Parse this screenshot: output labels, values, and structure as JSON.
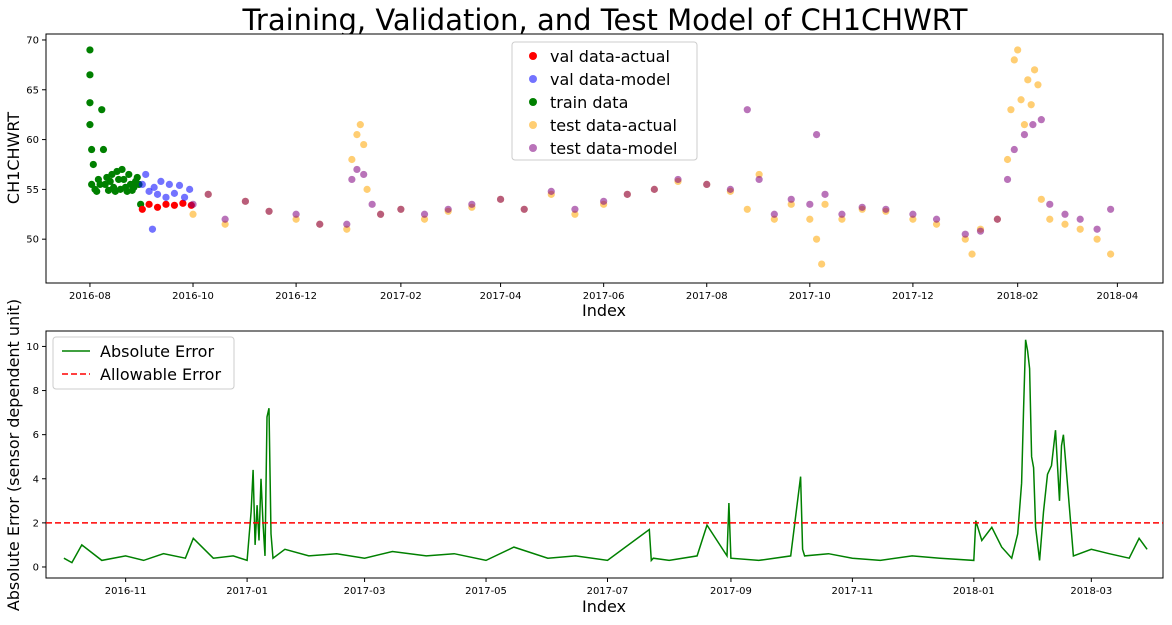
{
  "chart_data": [
    {
      "type": "scatter",
      "title": "Training, Validation, and Test Model of CH1CHWRT",
      "xlabel": "Index",
      "ylabel": "CH1CHWRT",
      "xlim": [
        "2016-07-06",
        "2018-04-28"
      ],
      "ylim": [
        45.6,
        70.6
      ],
      "x_ticks": [
        "2016-08",
        "2016-10",
        "2016-12",
        "2017-02",
        "2017-04",
        "2017-06",
        "2017-08",
        "2017-10",
        "2017-12",
        "2018-02",
        "2018-04"
      ],
      "y_ticks": [
        "50",
        "55",
        "60",
        "65",
        "70"
      ],
      "legend_position": "top-center",
      "grid": false,
      "series": [
        {
          "name": "train data",
          "color": "#008000",
          "x": [
            "2016-08-01",
            "2016-08-01",
            "2016-08-01",
            "2016-08-01",
            "2016-08-02",
            "2016-08-02",
            "2016-08-03",
            "2016-08-04",
            "2016-08-05",
            "2016-08-06",
            "2016-08-07",
            "2016-08-08",
            "2016-08-09",
            "2016-08-10",
            "2016-08-11",
            "2016-08-12",
            "2016-08-13",
            "2016-08-14",
            "2016-08-15",
            "2016-08-16",
            "2016-08-17",
            "2016-08-18",
            "2016-08-19",
            "2016-08-20",
            "2016-08-21",
            "2016-08-22",
            "2016-08-23",
            "2016-08-24",
            "2016-08-25",
            "2016-08-26",
            "2016-08-27",
            "2016-08-28",
            "2016-08-29",
            "2016-08-30",
            "2016-08-31"
          ],
          "y": [
            69.0,
            66.5,
            63.7,
            61.5,
            59.0,
            55.5,
            57.5,
            55.0,
            54.8,
            56.0,
            55.5,
            63.0,
            59.0,
            55.5,
            56.2,
            54.9,
            55.8,
            56.5,
            55.2,
            54.8,
            56.8,
            56.0,
            55.0,
            57.0,
            56.0,
            55.2,
            54.8,
            56.5,
            55.5,
            54.9,
            55.2,
            55.8,
            56.2,
            55.5,
            53.5
          ]
        },
        {
          "name": "val data-actual",
          "color": "#ff0000",
          "x": [
            "2016-09-01",
            "2016-09-05",
            "2016-09-10",
            "2016-09-15",
            "2016-09-20",
            "2016-09-25",
            "2016-09-30"
          ],
          "y": [
            53.0,
            53.5,
            53.2,
            53.5,
            53.4,
            53.6,
            53.4
          ]
        },
        {
          "name": "val data-model",
          "color": "#0000ff",
          "x": [
            "2016-09-01",
            "2016-09-03",
            "2016-09-05",
            "2016-09-07",
            "2016-09-08",
            "2016-09-10",
            "2016-09-12",
            "2016-09-15",
            "2016-09-17",
            "2016-09-20",
            "2016-09-23",
            "2016-09-26",
            "2016-09-29"
          ],
          "y": [
            55.5,
            56.5,
            54.8,
            51.0,
            55.2,
            54.5,
            55.8,
            54.2,
            55.5,
            54.6,
            55.4,
            54.2,
            55.0
          ]
        },
        {
          "name": "test data-actual",
          "color": "#ffa500",
          "x": [
            "2016-10-01",
            "2016-10-10",
            "2016-10-20",
            "2016-11-01",
            "2016-11-15",
            "2016-12-01",
            "2016-12-15",
            "2016-12-31",
            "2017-01-03",
            "2017-01-06",
            "2017-01-08",
            "2017-01-10",
            "2017-01-12",
            "2017-01-20",
            "2017-02-01",
            "2017-02-15",
            "2017-03-01",
            "2017-03-15",
            "2017-04-01",
            "2017-04-15",
            "2017-05-01",
            "2017-05-15",
            "2017-06-01",
            "2017-06-15",
            "2017-07-01",
            "2017-07-15",
            "2017-08-01",
            "2017-08-15",
            "2017-08-25",
            "2017-09-01",
            "2017-09-10",
            "2017-09-20",
            "2017-10-01",
            "2017-10-05",
            "2017-10-08",
            "2017-10-10",
            "2017-10-20",
            "2017-11-01",
            "2017-11-15",
            "2017-12-01",
            "2017-12-15",
            "2018-01-01",
            "2018-01-05",
            "2018-01-10",
            "2018-01-20",
            "2018-01-26",
            "2018-01-28",
            "2018-01-30",
            "2018-02-01",
            "2018-02-03",
            "2018-02-05",
            "2018-02-07",
            "2018-02-09",
            "2018-02-11",
            "2018-02-13",
            "2018-02-15",
            "2018-02-20",
            "2018-03-01",
            "2018-03-10",
            "2018-03-20",
            "2018-03-28"
          ],
          "y": [
            52.5,
            54.5,
            51.5,
            53.8,
            52.8,
            52.0,
            51.5,
            51.0,
            58.0,
            60.5,
            61.5,
            59.5,
            55.0,
            52.5,
            53.0,
            52.0,
            52.8,
            53.2,
            54.0,
            53.0,
            54.5,
            52.5,
            53.5,
            54.5,
            55.0,
            55.8,
            55.5,
            54.8,
            53.0,
            56.5,
            52.0,
            53.5,
            52.0,
            50.0,
            47.5,
            53.5,
            52.0,
            53.0,
            52.8,
            52.0,
            51.5,
            50.0,
            48.5,
            51.0,
            52.0,
            58.0,
            63.0,
            68.0,
            69.0,
            64.0,
            61.5,
            66.0,
            63.5,
            67.0,
            65.5,
            54.0,
            52.0,
            51.5,
            51.0,
            50.0,
            48.5
          ]
        },
        {
          "name": "test data-model",
          "color": "#800080",
          "x": [
            "2016-10-01",
            "2016-10-10",
            "2016-10-20",
            "2016-11-01",
            "2016-11-15",
            "2016-12-01",
            "2016-12-15",
            "2016-12-31",
            "2017-01-03",
            "2017-01-06",
            "2017-01-10",
            "2017-01-15",
            "2017-01-20",
            "2017-02-01",
            "2017-02-15",
            "2017-03-01",
            "2017-03-15",
            "2017-04-01",
            "2017-04-15",
            "2017-05-01",
            "2017-05-15",
            "2017-06-01",
            "2017-06-15",
            "2017-07-01",
            "2017-07-15",
            "2017-08-01",
            "2017-08-15",
            "2017-08-25",
            "2017-09-01",
            "2017-09-10",
            "2017-09-20",
            "2017-10-01",
            "2017-10-05",
            "2017-10-10",
            "2017-10-20",
            "2017-11-01",
            "2017-11-15",
            "2017-12-01",
            "2017-12-15",
            "2018-01-01",
            "2018-01-10",
            "2018-01-20",
            "2018-01-26",
            "2018-01-30",
            "2018-02-05",
            "2018-02-10",
            "2018-02-15",
            "2018-02-20",
            "2018-03-01",
            "2018-03-10",
            "2018-03-20",
            "2018-03-28"
          ],
          "y": [
            53.5,
            54.5,
            52.0,
            53.8,
            52.8,
            52.5,
            51.5,
            51.5,
            56.0,
            57.0,
            56.5,
            53.5,
            52.5,
            53.0,
            52.5,
            53.0,
            53.5,
            54.0,
            53.0,
            54.8,
            53.0,
            53.8,
            54.5,
            55.0,
            56.0,
            55.5,
            55.0,
            63.0,
            56.0,
            52.5,
            54.0,
            53.5,
            60.5,
            54.5,
            52.5,
            53.2,
            53.0,
            52.5,
            52.0,
            50.5,
            50.8,
            52.0,
            56.0,
            59.0,
            60.5,
            61.5,
            62.0,
            53.5,
            52.5,
            52.0,
            51.0,
            53.0
          ]
        }
      ]
    },
    {
      "type": "line",
      "title": "",
      "xlabel": "Index",
      "ylabel": "Absolute Error (sensor dependent unit)",
      "xlim": [
        "2016-09-22",
        "2018-04-06"
      ],
      "ylim": [
        -0.5,
        10.7
      ],
      "x_ticks": [
        "2016-11",
        "2017-01",
        "2017-03",
        "2017-05",
        "2017-07",
        "2017-09",
        "2017-11",
        "2018-01",
        "2018-03"
      ],
      "y_ticks": [
        "0",
        "2",
        "4",
        "6",
        "8",
        "10"
      ],
      "legend_position": "top-left",
      "grid": false,
      "allowable_error": 2,
      "series": [
        {
          "name": "Absolute Error",
          "color": "#008000",
          "x": [
            "2016-10-01",
            "2016-10-05",
            "2016-10-10",
            "2016-10-20",
            "2016-11-01",
            "2016-11-10",
            "2016-11-20",
            "2016-12-01",
            "2016-12-05",
            "2016-12-15",
            "2016-12-25",
            "2017-01-01",
            "2017-01-03",
            "2017-01-04",
            "2017-01-05",
            "2017-01-06",
            "2017-01-07",
            "2017-01-08",
            "2017-01-09",
            "2017-01-10",
            "2017-01-11",
            "2017-01-12",
            "2017-01-13",
            "2017-01-14",
            "2017-01-20",
            "2017-02-01",
            "2017-02-15",
            "2017-03-01",
            "2017-03-15",
            "2017-04-01",
            "2017-04-15",
            "2017-05-01",
            "2017-05-15",
            "2017-06-01",
            "2017-06-15",
            "2017-07-01",
            "2017-07-22",
            "2017-07-23",
            "2017-07-24",
            "2017-08-01",
            "2017-08-15",
            "2017-08-20",
            "2017-08-30",
            "2017-08-31",
            "2017-09-01",
            "2017-09-15",
            "2017-10-01",
            "2017-10-06",
            "2017-10-07",
            "2017-10-08",
            "2017-10-20",
            "2017-11-01",
            "2017-11-15",
            "2017-12-01",
            "2017-12-15",
            "2018-01-01",
            "2018-01-02",
            "2018-01-05",
            "2018-01-10",
            "2018-01-15",
            "2018-01-20",
            "2018-01-23",
            "2018-01-25",
            "2018-01-26",
            "2018-01-27",
            "2018-01-28",
            "2018-01-29",
            "2018-01-30",
            "2018-01-31",
            "2018-02-01",
            "2018-02-03",
            "2018-02-05",
            "2018-02-07",
            "2018-02-09",
            "2018-02-11",
            "2018-02-13",
            "2018-02-14",
            "2018-02-15",
            "2018-02-20",
            "2018-03-01",
            "2018-03-10",
            "2018-03-20",
            "2018-03-25",
            "2018-03-29"
          ],
          "y": [
            0.4,
            0.2,
            1.0,
            0.3,
            0.5,
            0.3,
            0.6,
            0.4,
            1.3,
            0.4,
            0.5,
            0.3,
            2.5,
            4.4,
            1.0,
            2.8,
            1.2,
            4.0,
            2.0,
            0.5,
            6.8,
            7.2,
            1.5,
            0.4,
            0.8,
            0.5,
            0.6,
            0.4,
            0.7,
            0.5,
            0.6,
            0.3,
            0.9,
            0.4,
            0.5,
            0.3,
            1.7,
            0.3,
            0.4,
            0.3,
            0.5,
            1.9,
            0.5,
            2.9,
            0.4,
            0.3,
            0.5,
            4.1,
            0.8,
            0.5,
            0.6,
            0.4,
            0.3,
            0.5,
            0.4,
            0.3,
            2.1,
            1.2,
            1.8,
            0.9,
            0.4,
            1.5,
            3.8,
            7.2,
            10.3,
            9.8,
            9.0,
            5.0,
            4.5,
            1.8,
            0.3,
            2.5,
            4.2,
            4.6,
            6.2,
            3.0,
            5.5,
            6.0,
            0.5,
            0.8,
            0.6,
            0.4,
            1.3,
            0.8
          ]
        },
        {
          "name": "Allowable Error",
          "color": "#ff0000",
          "x": [
            "2016-09-22",
            "2018-04-06"
          ],
          "y": [
            2,
            2
          ]
        }
      ]
    }
  ]
}
